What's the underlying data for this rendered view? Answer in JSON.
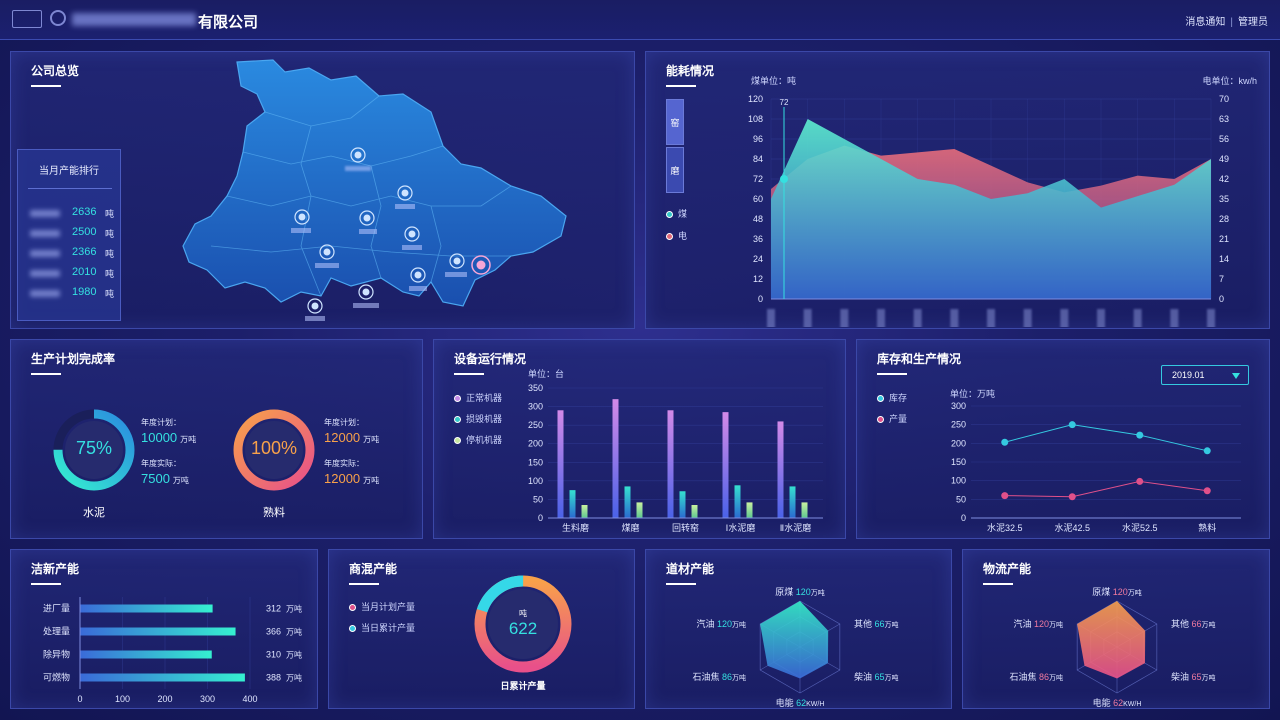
{
  "header": {
    "company_suffix": "有限公司",
    "messages": "消息通知",
    "admin": "管理员",
    "separator": "|"
  },
  "overview": {
    "title": "公司总览",
    "ranking_title": "当月产能排行",
    "ranking": [
      {
        "value": "2636",
        "unit": "吨"
      },
      {
        "value": "2500",
        "unit": "吨"
      },
      {
        "value": "2366",
        "unit": "吨"
      },
      {
        "value": "2010",
        "unit": "吨"
      },
      {
        "value": "1980",
        "unit": "吨"
      }
    ]
  },
  "energy": {
    "title": "能耗情况",
    "tabs": [
      "窑",
      "磨"
    ],
    "legend": [
      "煤",
      "电"
    ],
    "coal_unit": "煤单位：吨",
    "elec_unit": "电单位：kw/h",
    "marker_value": "72",
    "colors": {
      "coal": "#e06a7a",
      "elec": "#3fe0c8"
    }
  },
  "plan": {
    "title": "生产计划完成率",
    "items": [
      {
        "pct": "75%",
        "name": "水泥",
        "plan_label": "年度计划：",
        "plan_value": "10000",
        "actual_label": "年度实际：",
        "actual_value": "7500",
        "unit": "万吨"
      },
      {
        "pct": "100%",
        "name": "熟料",
        "plan_label": "年度计划：",
        "plan_value": "12000",
        "actual_label": "年度实际：",
        "actual_value": "12000",
        "unit": "万吨"
      }
    ]
  },
  "equipment": {
    "title": "设备运行情况",
    "legend": [
      "正常机器",
      "损毁机器",
      "停机机器"
    ],
    "unit": "单位：台"
  },
  "inventory": {
    "title": "库存和生产情况",
    "legend": [
      "库存",
      "产量"
    ],
    "unit": "单位：万吨",
    "date": "2019.01"
  },
  "clean": {
    "title": "洁新产能",
    "unit": "万吨"
  },
  "concrete": {
    "title": "商混产能",
    "legend": [
      "当月计划产量",
      "当日累计产量"
    ],
    "donut_unit": "吨",
    "donut_value": "622",
    "donut_label": "日累计产量",
    "completion": 0.8
  },
  "road": {
    "title": "道材产能",
    "labels": [
      {
        "name": "原煤",
        "value": "120",
        "unit": "万吨"
      },
      {
        "name": "其他",
        "value": "66",
        "unit": "万吨"
      },
      {
        "name": "柴油",
        "value": "65",
        "unit": "万吨"
      },
      {
        "name": "电能",
        "value": "62",
        "unit": "KW/H"
      },
      {
        "name": "石油焦",
        "value": "86",
        "unit": "万吨"
      },
      {
        "name": "汽油",
        "value": "120",
        "unit": "万吨"
      }
    ]
  },
  "logistics": {
    "title": "物流产能",
    "labels": [
      {
        "name": "原煤",
        "value": "120",
        "unit": "万吨"
      },
      {
        "name": "其他",
        "value": "66",
        "unit": "万吨"
      },
      {
        "name": "柴油",
        "value": "65",
        "unit": "万吨"
      },
      {
        "name": "电能",
        "value": "62",
        "unit": "KW/H"
      },
      {
        "name": "石油焦",
        "value": "86",
        "unit": "万吨"
      },
      {
        "name": "汽油",
        "value": "120",
        "unit": "万吨"
      }
    ]
  },
  "chart_data": [
    {
      "type": "area",
      "title": "能耗情况",
      "categories": [
        "",
        "",
        "",
        "",
        "",
        "",
        "",
        "",
        "",
        "",
        "",
        "",
        ""
      ],
      "series": [
        {
          "name": "煤",
          "axis": "left",
          "values": [
            66,
            84,
            92,
            86,
            88,
            90,
            80,
            70,
            64,
            68,
            74,
            72,
            84
          ]
        },
        {
          "name": "电",
          "axis": "right",
          "values": [
            35,
            63,
            56,
            49,
            42,
            40,
            35,
            37,
            42,
            32,
            36,
            40,
            49
          ]
        }
      ],
      "ylim_left": [
        0,
        120
      ],
      "yticks_left": [
        0,
        12,
        24,
        36,
        48,
        60,
        72,
        84,
        96,
        108,
        120
      ],
      "ylim_right": [
        0,
        70
      ],
      "yticks_right": [
        0,
        7,
        14,
        21,
        28,
        35,
        42,
        49,
        56,
        63,
        70
      ]
    },
    {
      "type": "bar",
      "title": "设备运行情况",
      "categories": [
        "生料磨",
        "煤磨",
        "回转窑",
        "Ⅰ水泥磨",
        "Ⅱ水泥磨"
      ],
      "series": [
        {
          "name": "正常机器",
          "values": [
            290,
            320,
            290,
            285,
            260
          ]
        },
        {
          "name": "损毁机器",
          "values": [
            75,
            85,
            72,
            88,
            85
          ]
        },
        {
          "name": "停机机器",
          "values": [
            35,
            42,
            35,
            42,
            42
          ]
        }
      ],
      "ylim": [
        0,
        350
      ],
      "yticks": [
        0,
        50,
        100,
        150,
        200,
        250,
        300,
        350
      ]
    },
    {
      "type": "line",
      "title": "库存和生产情况",
      "categories": [
        "水泥32.5",
        "水泥42.5",
        "水泥52.5",
        "熟料"
      ],
      "series": [
        {
          "name": "库存",
          "values": [
            203,
            250,
            222,
            180
          ]
        },
        {
          "name": "产量",
          "values": [
            60,
            57,
            98,
            73
          ]
        }
      ],
      "ylim": [
        0,
        300
      ],
      "yticks": [
        0,
        50,
        100,
        150,
        200,
        250,
        300
      ]
    },
    {
      "type": "bar",
      "title": "洁新产能",
      "orientation": "horizontal",
      "categories": [
        "进厂量",
        "处理量",
        "除异物",
        "可燃物"
      ],
      "values": [
        312,
        366,
        310,
        388
      ],
      "xlim": [
        0,
        400
      ],
      "xticks": [
        0,
        100,
        200,
        300,
        400
      ]
    },
    {
      "type": "radar",
      "title": "道材产能",
      "axes": [
        "原煤",
        "其他",
        "柴油",
        "电能",
        "石油焦",
        "汽油"
      ],
      "values": [
        120,
        66,
        65,
        62,
        86,
        120
      ]
    },
    {
      "type": "radar",
      "title": "物流产能",
      "axes": [
        "原煤",
        "其他",
        "柴油",
        "电能",
        "石油焦",
        "汽油"
      ],
      "values": [
        120,
        66,
        65,
        62,
        86,
        120
      ]
    }
  ]
}
